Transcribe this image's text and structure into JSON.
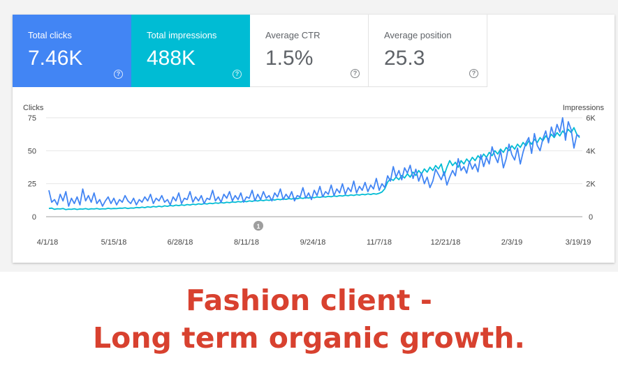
{
  "metrics": [
    {
      "label": "Total clicks",
      "value": "7.46K"
    },
    {
      "label": "Total impressions",
      "value": "488K"
    },
    {
      "label": "Average CTR",
      "value": "1.5%"
    },
    {
      "label": "Average position",
      "value": "25.3"
    }
  ],
  "help_glyph": "?",
  "colors": {
    "clicks": "#4285f4",
    "impressions": "#00bcd4",
    "caption": "#d8412f"
  },
  "chart_data": {
    "type": "line",
    "left_axis_label": "Clicks",
    "right_axis_label": "Impressions",
    "left_ticks": [
      "75",
      "50",
      "25",
      "0"
    ],
    "right_ticks": [
      "6K",
      "4K",
      "2K",
      "0"
    ],
    "ylim_clicks": [
      0,
      75
    ],
    "ylim_impressions": [
      0,
      6000
    ],
    "x_labels": [
      "4/1/18",
      "5/15/18",
      "6/28/18",
      "8/11/18",
      "9/24/18",
      "11/7/18",
      "12/21/18",
      "2/3/19",
      "3/19/19"
    ],
    "annotation": "1",
    "grid": true,
    "series": [
      {
        "name": "Clicks",
        "axis": "left",
        "values": [
          20,
          11,
          13,
          9,
          17,
          12,
          19,
          8,
          14,
          10,
          15,
          9,
          21,
          12,
          16,
          11,
          18,
          10,
          13,
          8,
          12,
          15,
          10,
          14,
          9,
          13,
          11,
          16,
          12,
          10,
          14,
          9,
          13,
          11,
          15,
          12,
          17,
          10,
          14,
          12,
          16,
          11,
          13,
          9,
          15,
          12,
          18,
          10,
          14,
          13,
          19,
          11,
          15,
          12,
          16,
          10,
          14,
          13,
          20,
          12,
          15,
          11,
          17,
          14,
          19,
          12,
          16,
          13,
          18,
          11,
          15,
          14,
          20,
          12,
          17,
          13,
          19,
          14,
          16,
          12,
          18,
          15,
          21,
          13,
          17,
          14,
          19,
          12,
          16,
          15,
          22,
          14,
          18,
          13,
          20,
          16,
          23,
          15,
          19,
          17,
          24,
          16,
          21,
          18,
          25,
          17,
          22,
          19,
          27,
          18,
          23,
          20,
          26,
          19,
          24,
          21,
          29,
          20,
          25,
          22,
          31,
          27,
          38,
          30,
          35,
          28,
          37,
          33,
          39,
          29,
          36,
          27,
          33,
          25,
          30,
          22,
          27,
          36,
          32,
          28,
          34,
          24,
          30,
          35,
          31,
          44,
          35,
          38,
          33,
          42,
          36,
          40,
          34,
          47,
          38,
          45,
          40,
          53,
          46,
          41,
          50,
          37,
          44,
          55,
          47,
          43,
          52,
          40,
          49,
          56,
          60,
          48,
          63,
          54,
          50,
          59,
          65,
          56,
          68,
          61,
          70,
          64,
          75,
          58,
          72,
          66,
          52,
          62,
          61
        ]
      },
      {
        "name": "Impressions",
        "axis": "right",
        "values": [
          500,
          520,
          450,
          480,
          470,
          500,
          430,
          460,
          450,
          480,
          440,
          470,
          460,
          490,
          450,
          480,
          470,
          500,
          460,
          480,
          470,
          510,
          480,
          500,
          490,
          520,
          510,
          540,
          500,
          530,
          520,
          560,
          540,
          580,
          550,
          600,
          570,
          620,
          590,
          640,
          600,
          660,
          630,
          680,
          650,
          700,
          670,
          720,
          690,
          740,
          710,
          760,
          730,
          780,
          750,
          800,
          770,
          820,
          790,
          840,
          810,
          860,
          830,
          880,
          850,
          900,
          870,
          920,
          890,
          940,
          910,
          960,
          930,
          980,
          950,
          1000,
          970,
          1020,
          990,
          1040,
          1010,
          1060,
          1030,
          1080,
          1050,
          1100,
          1070,
          1120,
          1090,
          1140,
          1110,
          1160,
          1130,
          1180,
          1150,
          1200,
          1170,
          1220,
          1190,
          1240,
          1210,
          1260,
          1230,
          1280,
          1250,
          1300,
          1270,
          1320,
          1290,
          1340,
          1310,
          1360,
          1330,
          1380,
          1350,
          1400,
          1370,
          1420,
          1500,
          1700,
          2100,
          2300,
          2200,
          2400,
          2250,
          2500,
          2350,
          2600,
          2400,
          2700,
          2500,
          2800,
          2600,
          2900,
          2700,
          3000,
          2800,
          3100,
          2900,
          3200,
          2500,
          3000,
          3400,
          3100,
          3300,
          3000,
          3400,
          3200,
          3500,
          3300,
          3600,
          3400,
          3700,
          3500,
          3800,
          3600,
          3900,
          3700,
          4000,
          3800,
          4100,
          3900,
          4200,
          4000,
          4300,
          4100,
          4400,
          4200,
          4500,
          4300,
          4600,
          4400,
          4700,
          4500,
          4800,
          4600,
          4900,
          4700,
          5000,
          4800,
          5100,
          4900,
          5200,
          5000,
          5300,
          5100,
          5400,
          5000,
          4800
        ]
      }
    ]
  },
  "caption_line1": "Fashion client -",
  "caption_line2": "Long term organic growth."
}
